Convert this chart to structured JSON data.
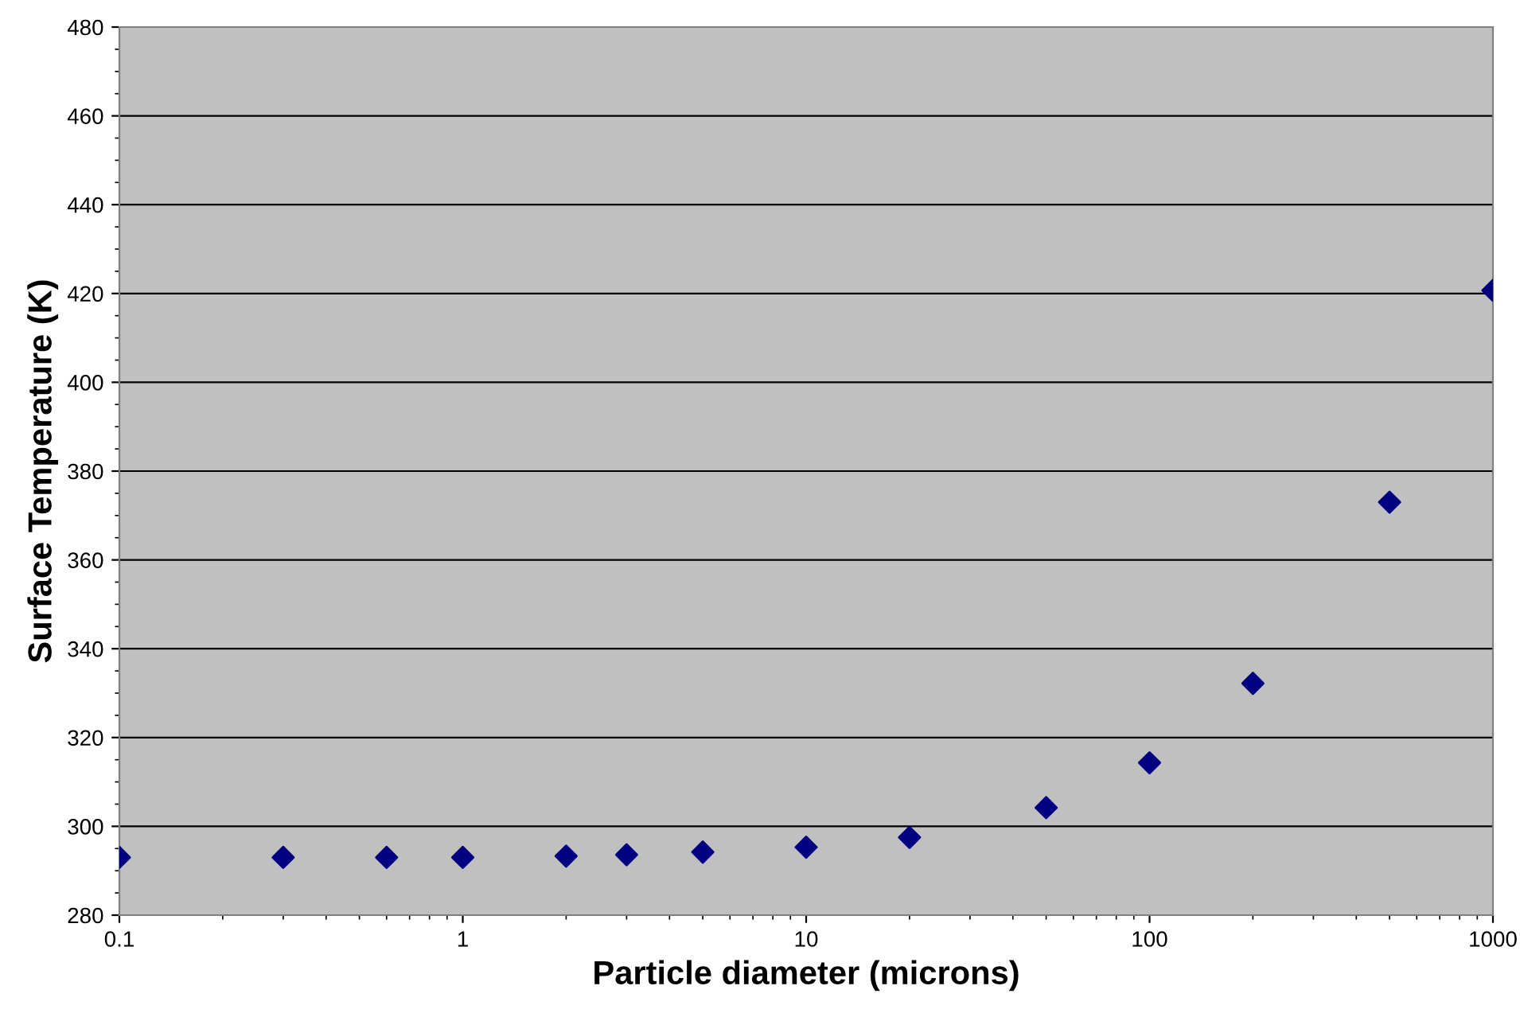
{
  "chart_data": {
    "type": "scatter",
    "xlabel": "Particle diameter (microns)",
    "ylabel": "Surface Temperature (K)",
    "x": [
      0.1,
      0.3,
      0.6,
      1,
      2,
      3,
      5,
      10,
      20,
      50,
      100,
      200,
      500,
      1000
    ],
    "series": [
      {
        "color": "#000080",
        "values": [
          293,
          293,
          293,
          293,
          293.3,
          293.6,
          294.2,
          295.3,
          297.5,
          304.2,
          314.3,
          332.2,
          373,
          420.7
        ]
      }
    ],
    "log": "x",
    "xlim": [
      0.1,
      1000
    ],
    "xticks": [
      0.1,
      1,
      10,
      100,
      1000
    ],
    "ylim": [
      280,
      480
    ],
    "yticks": [
      280,
      300,
      320,
      340,
      360,
      380,
      400,
      420,
      440,
      460,
      480
    ],
    "grid": "y",
    "marker": "diamond",
    "legend": false
  }
}
